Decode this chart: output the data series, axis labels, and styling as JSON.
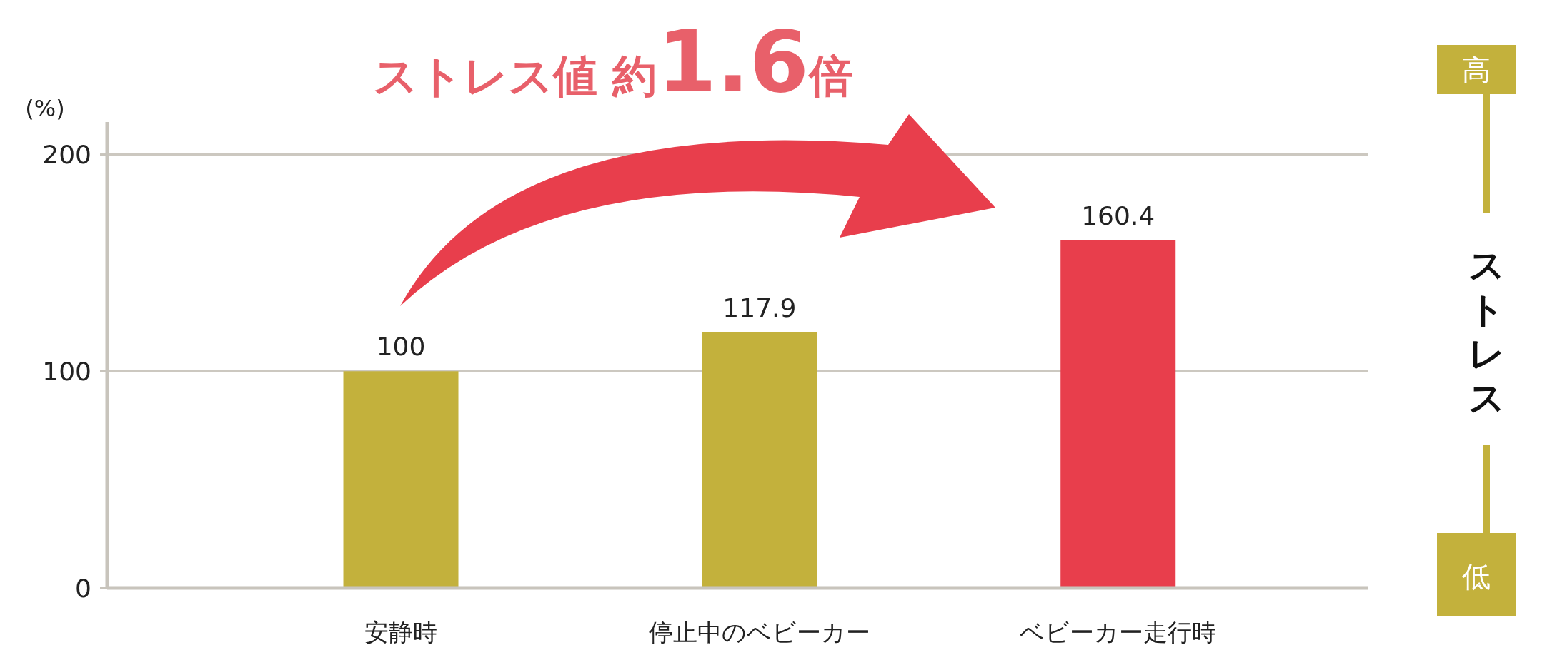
{
  "chart_data": {
    "type": "bar",
    "title": "ストレス値 約1.6倍",
    "ylabel": "(%)",
    "categories": [
      "安静時",
      "停止中のベビーカー",
      "ベビーカー走行時"
    ],
    "values": [
      100,
      117.9,
      160.4
    ],
    "colors": [
      "#c3b13c",
      "#c3b13c",
      "#e83e4c"
    ],
    "ylim": [
      0,
      215
    ],
    "yticks": [
      0,
      100,
      200
    ],
    "grid": "y",
    "data_labels": true,
    "annotations": [
      "高",
      "ストレス",
      "低"
    ]
  }
}
